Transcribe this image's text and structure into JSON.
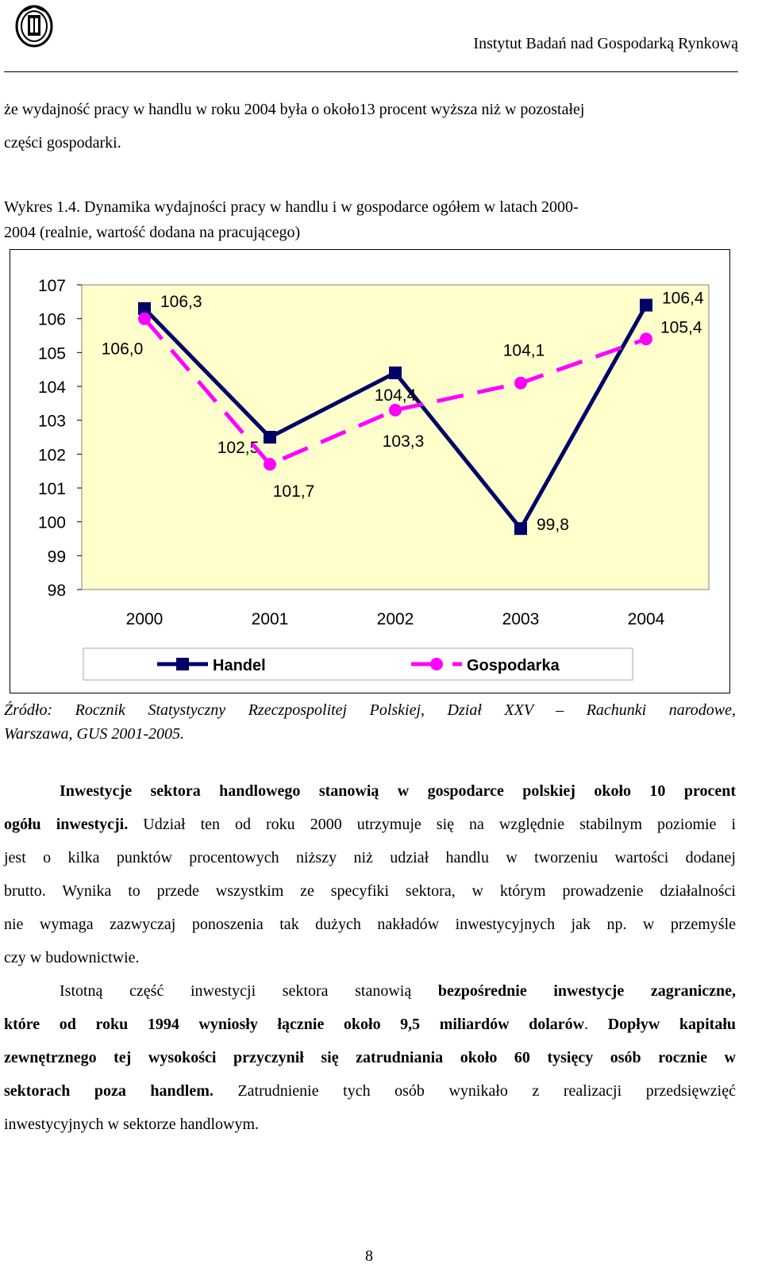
{
  "header": {
    "institute": "Instytut Badań nad Gospodarką Rynkową"
  },
  "intro": {
    "line1": "że wydajność pracy w handlu w roku 2004 była o około13 procent wyższa niż w pozostałej",
    "line2": "części gospodarki."
  },
  "caption": {
    "label": "Wykres 1.4.",
    "text1": " Dynamika wydajności pracy w handlu i w gospodarce ogółem w latach 2000-",
    "text2": "2004 (realnie, wartość dodana na pracującego)"
  },
  "chart_data": {
    "type": "line",
    "x": [
      "2000",
      "2001",
      "2002",
      "2003",
      "2004"
    ],
    "ylim": [
      98,
      107
    ],
    "yticks": [
      "107",
      "106",
      "105",
      "104",
      "103",
      "102",
      "101",
      "100",
      "99",
      "98"
    ],
    "series": [
      {
        "name": "Handel",
        "values": [
          106.3,
          102.5,
          104.4,
          99.8,
          106.4
        ],
        "labels": [
          "106,3",
          "102,5",
          "104,4",
          "99,8",
          "106,4"
        ],
        "color": "#000066",
        "marker": "square",
        "dash": "solid"
      },
      {
        "name": "Gospodarka",
        "values": [
          106.0,
          101.7,
          103.3,
          104.1,
          105.4
        ],
        "labels": [
          "106,0",
          "101,7",
          "103,3",
          "104,1",
          "105,4"
        ],
        "color": "#ff00ff",
        "marker": "circle",
        "dash": "dashed"
      }
    ],
    "plot_background": "#ffffcc",
    "legend_position": "bottom",
    "grid": false
  },
  "source": {
    "text1": "Źródło: Rocznik Statystyczny Rzeczpospolitej Polskiej, Dział XXV – Rachunki narodowe,",
    "text2": "Warszawa, GUS 2001-2005."
  },
  "para2": {
    "bold1": "Inwestycje sektora handlowego stanowią w gospodarce polskiej około 10 procent",
    "bold2": "ogółu inwestycji.",
    "rest1": " Udział ten od roku 2000 utrzymuje się na względnie stabilnym poziomie i",
    "line3": "jest o kilka punktów procentowych niższy niż udział handlu w tworzeniu wartości dodanej",
    "line4": "brutto. Wynika to przede wszystkim ze specyfiki sektora, w którym prowadzenie działalności",
    "line5": "nie wymaga zazwyczaj ponoszenia tak dużych nakładów inwestycyjnych jak np. w przemyśle",
    "line6": "czy w budownictwie."
  },
  "para3": {
    "plain1": "Istotną część inwestycji sektora stanowią ",
    "bold1": "bezpośrednie inwestycje zagraniczne,",
    "bold2": "które od roku 1994 wyniosły łącznie około 9,5 miliardów dolarów",
    "plain2": ". ",
    "bold3": "Dopływ kapitału",
    "bold4": "zewnętrznego tej wysokości przyczynił się zatrudniania około 60 tysięcy osób rocznie w",
    "bold5": "sektorach poza handlem.",
    "plain3": " Zatrudnienie tych osób wynikało z realizacji przedsięwzięć",
    "line6": "inwestycyjnych w sektorze handlowym."
  },
  "footer": {
    "page": "8"
  }
}
